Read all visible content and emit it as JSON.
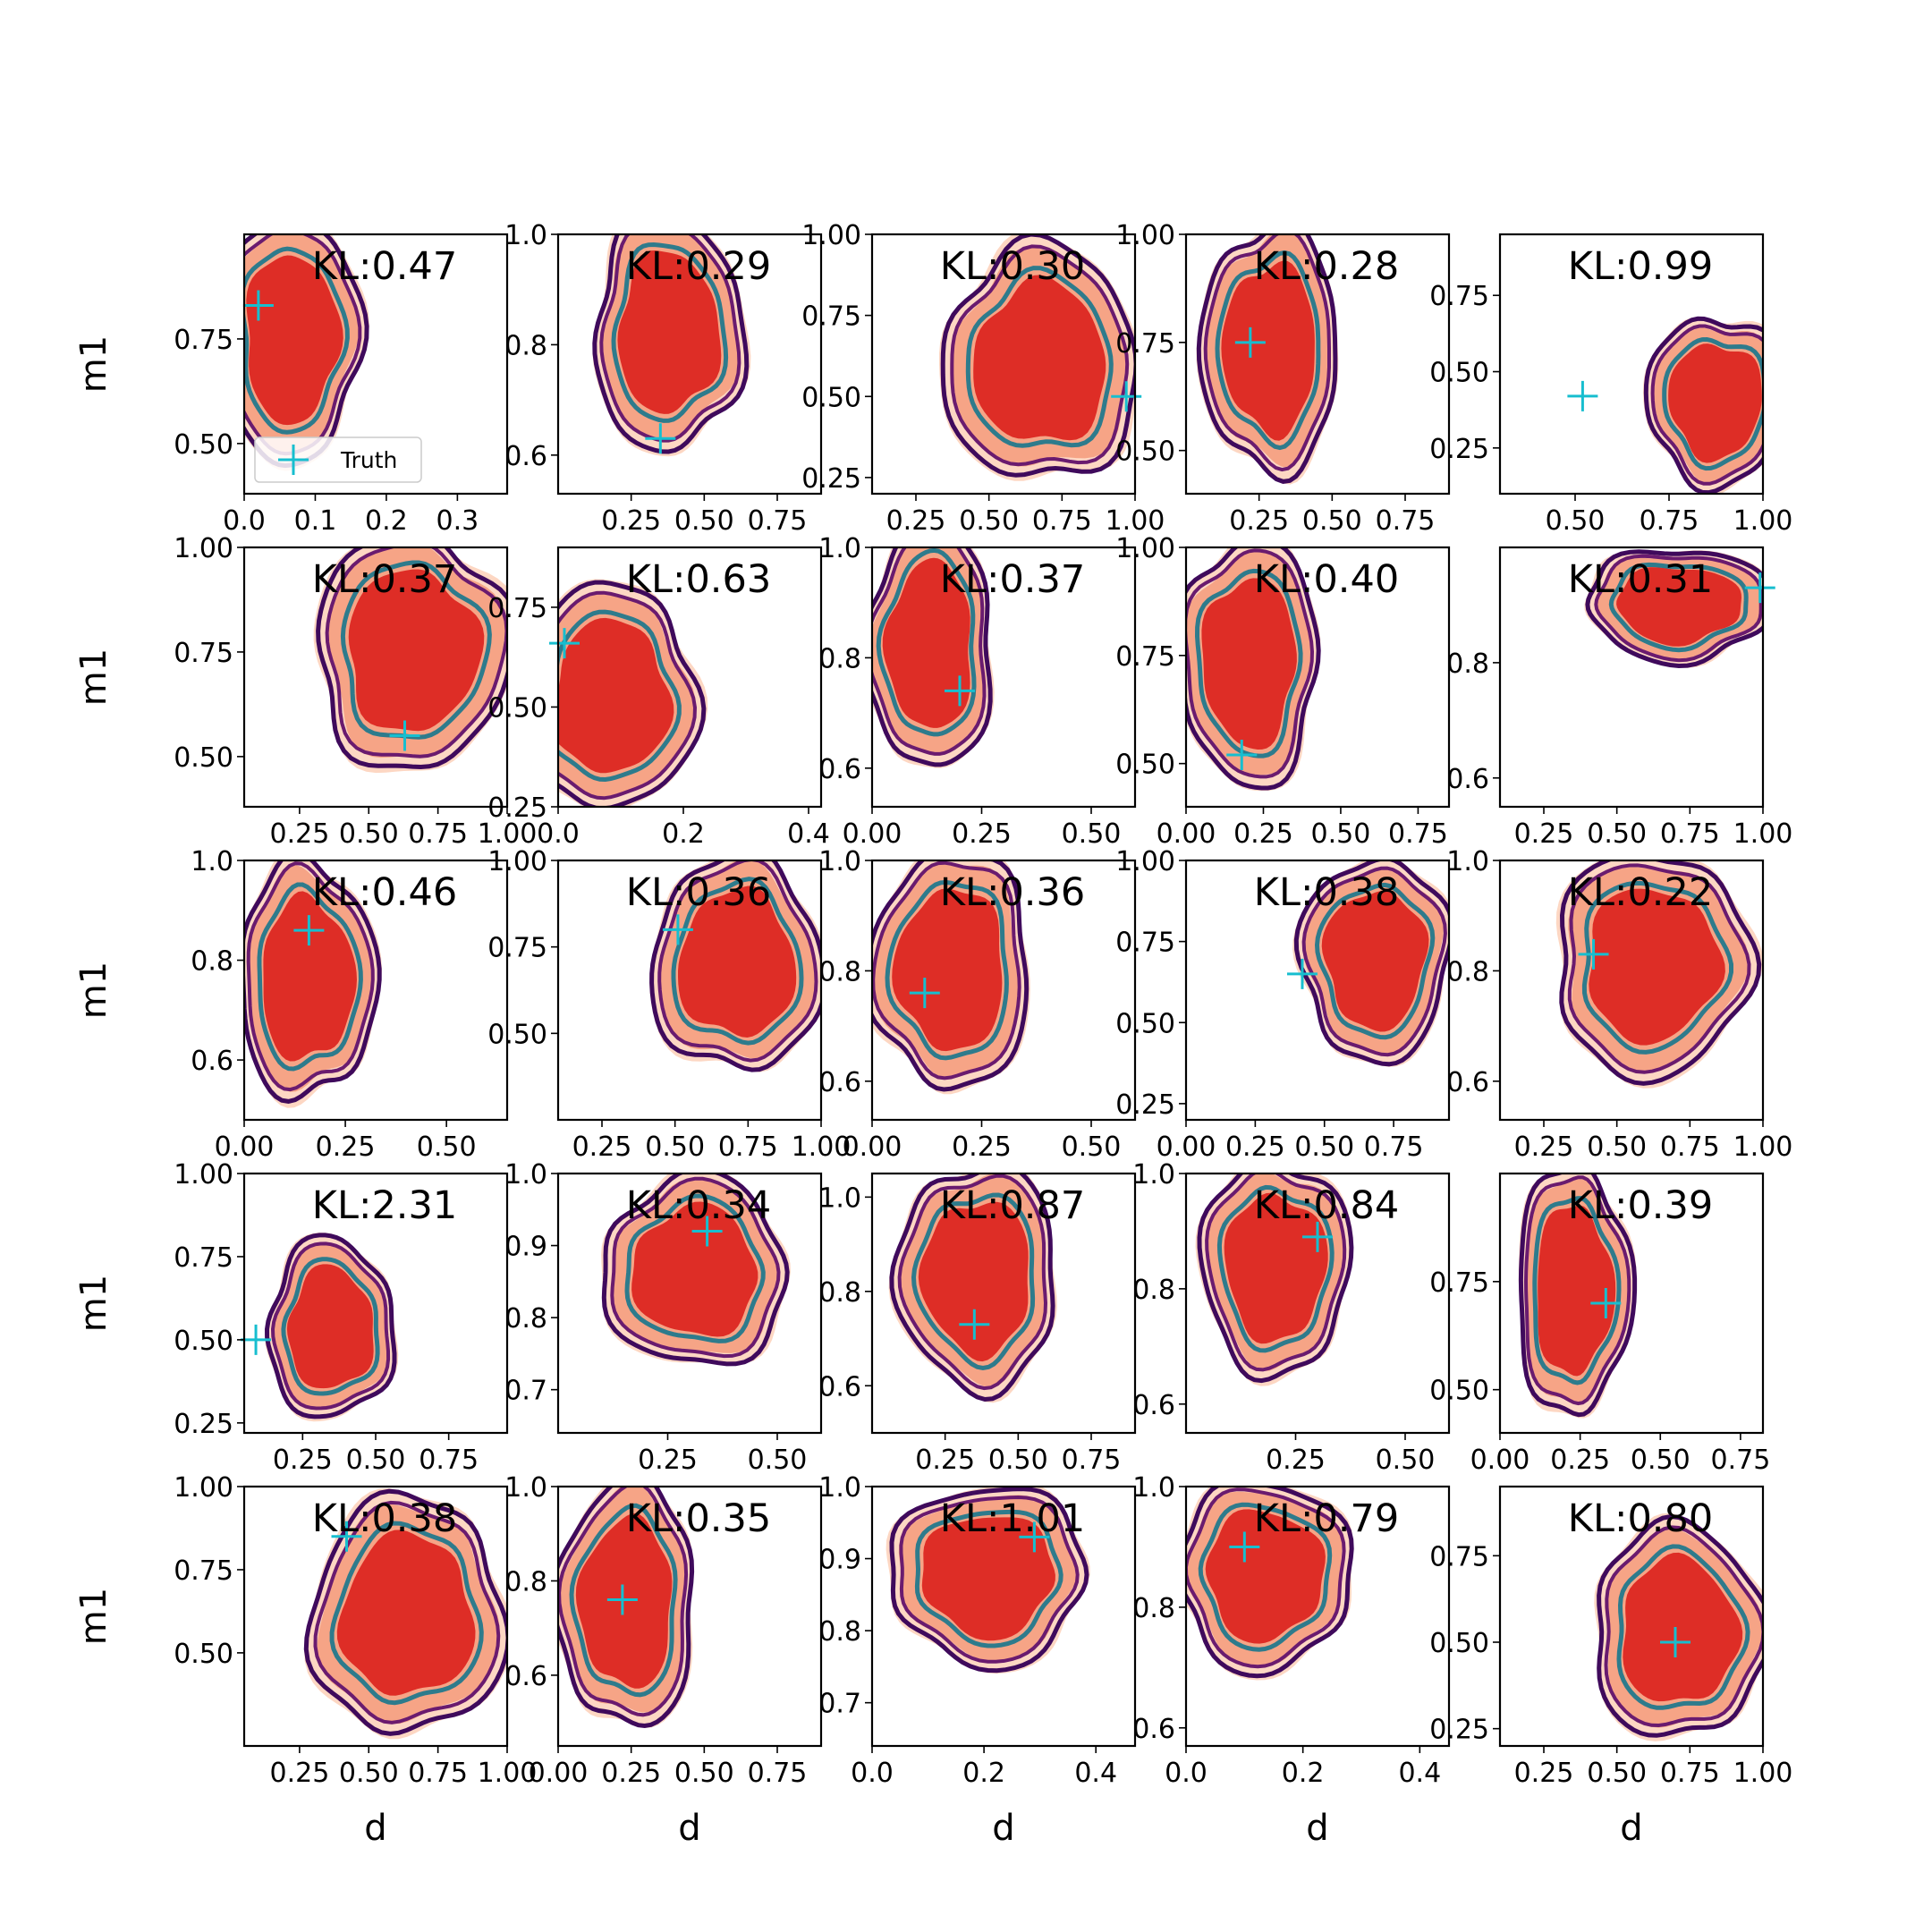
{
  "chart_data": {
    "type": "contour",
    "layout": {
      "rows": 5,
      "cols": 5
    },
    "xlabel": "d",
    "ylabel": "m1",
    "legend": {
      "label": "Truth",
      "placement": "lower-left of first panel"
    },
    "colors": {
      "fill_light": "#fdd7c3",
      "fill_mid": "#f6a486",
      "fill_dark": "#de2d26",
      "contour_outer": "#3f0a5c",
      "contour_mid": "#6a1b6f",
      "contour_inner": "#2e7b8c",
      "truth": "#17becf"
    },
    "panels": [
      {
        "kl": "KL:0.47",
        "xlim": [
          0.0,
          0.37
        ],
        "ylim": [
          0.38,
          1.0
        ],
        "xticks": [
          "0.0",
          "0.1",
          "0.2",
          "0.3"
        ],
        "xtick_vals": [
          0.0,
          0.1,
          0.2,
          0.3
        ],
        "yticks": [
          "0.50",
          "0.75"
        ],
        "ytick_vals": [
          0.5,
          0.75
        ],
        "truth": [
          0.02,
          0.83
        ],
        "blob": {
          "cx": 0.18,
          "cy": 0.6,
          "rx": 0.24,
          "ry": 0.44
        }
      },
      {
        "kl": "KL:0.29",
        "xlim": [
          0.0,
          0.9
        ],
        "ylim": [
          0.53,
          1.0
        ],
        "xticks": [
          "0.25",
          "0.50",
          "0.75"
        ],
        "xtick_vals": [
          0.25,
          0.5,
          0.75
        ],
        "yticks": [
          "0.6",
          "0.8",
          "1.0"
        ],
        "ytick_vals": [
          0.6,
          0.8,
          1.0
        ],
        "truth": [
          0.35,
          0.63
        ],
        "blob": {
          "cx": 0.42,
          "cy": 0.62,
          "rx": 0.26,
          "ry": 0.42
        }
      },
      {
        "kl": "KL:0.30",
        "xlim": [
          0.1,
          1.0
        ],
        "ylim": [
          0.2,
          1.0
        ],
        "xticks": [
          "0.25",
          "0.50",
          "0.75",
          "1.00"
        ],
        "xtick_vals": [
          0.25,
          0.5,
          0.75,
          1.0
        ],
        "yticks": [
          "0.25",
          "0.50",
          "0.75",
          "1.00"
        ],
        "ytick_vals": [
          0.25,
          0.5,
          0.75,
          1.0
        ],
        "truth": [
          0.97,
          0.5
        ],
        "blob": {
          "cx": 0.64,
          "cy": 0.5,
          "rx": 0.34,
          "ry": 0.42
        }
      },
      {
        "kl": "KL:0.28",
        "xlim": [
          0.0,
          0.9
        ],
        "ylim": [
          0.4,
          1.0
        ],
        "xticks": [
          "0.25",
          "0.50",
          "0.75"
        ],
        "xtick_vals": [
          0.25,
          0.5,
          0.75
        ],
        "yticks": [
          "0.50",
          "0.75",
          "1.00"
        ],
        "ytick_vals": [
          0.5,
          0.75,
          1.0
        ],
        "truth": [
          0.22,
          0.75
        ],
        "blob": {
          "cx": 0.32,
          "cy": 0.56,
          "rx": 0.24,
          "ry": 0.44
        }
      },
      {
        "kl": "KL:0.99",
        "xlim": [
          0.3,
          1.0
        ],
        "ylim": [
          0.1,
          0.95
        ],
        "xticks": [
          "0.50",
          "0.75",
          "1.00"
        ],
        "xtick_vals": [
          0.5,
          0.75,
          1.0
        ],
        "yticks": [
          "0.25",
          "0.50",
          "0.75"
        ],
        "ytick_vals": [
          0.25,
          0.5,
          0.75
        ],
        "truth": [
          0.52,
          0.42
        ],
        "blob": {
          "cx": 0.82,
          "cy": 0.36,
          "rx": 0.24,
          "ry": 0.3
        }
      },
      {
        "kl": "KL:0.37",
        "xlim": [
          0.05,
          1.0
        ],
        "ylim": [
          0.38,
          1.0
        ],
        "xticks": [
          "0.25",
          "0.50",
          "0.75",
          "1.00"
        ],
        "xtick_vals": [
          0.25,
          0.5,
          0.75,
          1.0
        ],
        "yticks": [
          "0.50",
          "0.75",
          "1.00"
        ],
        "ytick_vals": [
          0.5,
          0.75,
          1.0
        ],
        "truth": [
          0.63,
          0.55
        ],
        "blob": {
          "cx": 0.64,
          "cy": 0.6,
          "rx": 0.34,
          "ry": 0.42
        }
      },
      {
        "kl": "KL:0.63",
        "xlim": [
          0.0,
          0.42
        ],
        "ylim": [
          0.25,
          0.9
        ],
        "xticks": [
          "0.0",
          "0.2",
          "0.4"
        ],
        "xtick_vals": [
          0.0,
          0.2,
          0.4
        ],
        "yticks": [
          "0.25",
          "0.50",
          "0.75"
        ],
        "ytick_vals": [
          0.25,
          0.5,
          0.75
        ],
        "truth": [
          0.01,
          0.66
        ],
        "blob": {
          "cx": 0.2,
          "cy": 0.42,
          "rx": 0.3,
          "ry": 0.4
        }
      },
      {
        "kl": "KL:0.37",
        "xlim": [
          0.0,
          0.6
        ],
        "ylim": [
          0.53,
          1.0
        ],
        "xticks": [
          "0.00",
          "0.25",
          "0.50"
        ],
        "xtick_vals": [
          0.0,
          0.25,
          0.5
        ],
        "yticks": [
          "0.6",
          "0.8",
          "1.0"
        ],
        "ytick_vals": [
          0.6,
          0.8,
          1.0
        ],
        "truth": [
          0.2,
          0.74
        ],
        "blob": {
          "cx": 0.22,
          "cy": 0.62,
          "rx": 0.22,
          "ry": 0.44
        }
      },
      {
        "kl": "KL:0.40",
        "xlim": [
          0.0,
          0.85
        ],
        "ylim": [
          0.4,
          1.0
        ],
        "xticks": [
          "0.00",
          "0.25",
          "0.50",
          "0.75"
        ],
        "xtick_vals": [
          0.0,
          0.25,
          0.5,
          0.75
        ],
        "yticks": [
          "0.50",
          "0.75",
          "1.00"
        ],
        "ytick_vals": [
          0.5,
          0.75,
          1.0
        ],
        "truth": [
          0.18,
          0.52
        ],
        "blob": {
          "cx": 0.24,
          "cy": 0.56,
          "rx": 0.24,
          "ry": 0.44
        }
      },
      {
        "kl": "KL:0.31",
        "xlim": [
          0.1,
          1.0
        ],
        "ylim": [
          0.55,
          1.0
        ],
        "xticks": [
          "0.25",
          "0.50",
          "0.75",
          "1.00"
        ],
        "xtick_vals": [
          0.25,
          0.5,
          0.75,
          1.0
        ],
        "yticks": [
          "0.6",
          "0.8"
        ],
        "ytick_vals": [
          0.6,
          0.8
        ],
        "truth": [
          0.99,
          0.93
        ],
        "blob": {
          "cx": 0.68,
          "cy": 0.78,
          "rx": 0.32,
          "ry": 0.2
        }
      },
      {
        "kl": "KL:0.46",
        "xlim": [
          0.0,
          0.65
        ],
        "ylim": [
          0.48,
          1.0
        ],
        "xticks": [
          "0.00",
          "0.25",
          "0.50"
        ],
        "xtick_vals": [
          0.0,
          0.25,
          0.5
        ],
        "yticks": [
          "0.6",
          "0.8",
          "1.0"
        ],
        "ytick_vals": [
          0.6,
          0.8,
          1.0
        ],
        "truth": [
          0.16,
          0.86
        ],
        "blob": {
          "cx": 0.24,
          "cy": 0.54,
          "rx": 0.24,
          "ry": 0.42
        }
      },
      {
        "kl": "KL:0.36",
        "xlim": [
          0.1,
          1.0
        ],
        "ylim": [
          0.25,
          1.0
        ],
        "xticks": [
          "0.25",
          "0.50",
          "0.75",
          "1.00"
        ],
        "xtick_vals": [
          0.25,
          0.5,
          0.75,
          1.0
        ],
        "yticks": [
          "0.50",
          "0.75",
          "1.00"
        ],
        "ytick_vals": [
          0.5,
          0.75,
          1.0
        ],
        "truth": [
          0.51,
          0.8
        ],
        "blob": {
          "cx": 0.68,
          "cy": 0.6,
          "rx": 0.3,
          "ry": 0.38
        }
      },
      {
        "kl": "KL:0.36",
        "xlim": [
          0.0,
          0.6
        ],
        "ylim": [
          0.53,
          1.0
        ],
        "xticks": [
          "0.00",
          "0.25",
          "0.50"
        ],
        "xtick_vals": [
          0.0,
          0.25,
          0.5
        ],
        "yticks": [
          "0.6",
          "0.8",
          "1.0"
        ],
        "ytick_vals": [
          0.6,
          0.8,
          1.0
        ],
        "truth": [
          0.12,
          0.76
        ],
        "blob": {
          "cx": 0.3,
          "cy": 0.58,
          "rx": 0.28,
          "ry": 0.42
        }
      },
      {
        "kl": "KL:0.38",
        "xlim": [
          0.0,
          0.95
        ],
        "ylim": [
          0.2,
          1.0
        ],
        "xticks": [
          "0.00",
          "0.25",
          "0.50",
          "0.75"
        ],
        "xtick_vals": [
          0.0,
          0.25,
          0.5,
          0.75
        ],
        "yticks": [
          "0.25",
          "0.50",
          "0.75",
          "1.00"
        ],
        "ytick_vals": [
          0.25,
          0.5,
          0.75,
          1.0
        ],
        "truth": [
          0.42,
          0.65
        ],
        "blob": {
          "cx": 0.72,
          "cy": 0.62,
          "rx": 0.26,
          "ry": 0.36
        }
      },
      {
        "kl": "KL:0.22",
        "xlim": [
          0.1,
          1.0
        ],
        "ylim": [
          0.53,
          1.0
        ],
        "xticks": [
          "0.25",
          "0.50",
          "0.75",
          "1.00"
        ],
        "xtick_vals": [
          0.25,
          0.5,
          0.75,
          1.0
        ],
        "yticks": [
          "0.6",
          "0.8",
          "1.0"
        ],
        "ytick_vals": [
          0.6,
          0.8,
          1.0
        ],
        "truth": [
          0.42,
          0.83
        ],
        "blob": {
          "cx": 0.58,
          "cy": 0.6,
          "rx": 0.34,
          "ry": 0.4
        }
      },
      {
        "kl": "KL:2.31",
        "xlim": [
          0.05,
          0.95
        ],
        "ylim": [
          0.22,
          1.0
        ],
        "xticks": [
          "0.25",
          "0.50",
          "0.75"
        ],
        "xtick_vals": [
          0.25,
          0.5,
          0.75
        ],
        "yticks": [
          "0.25",
          "0.50",
          "0.75",
          "1.00"
        ],
        "ytick_vals": [
          0.25,
          0.5,
          0.75,
          1.0
        ],
        "truth": [
          0.09,
          0.5
        ],
        "blob": {
          "cx": 0.33,
          "cy": 0.4,
          "rx": 0.22,
          "ry": 0.32
        }
      },
      {
        "kl": "KL:0.34",
        "xlim": [
          0.0,
          0.6
        ],
        "ylim": [
          0.64,
          1.0
        ],
        "xticks": [
          "0.25",
          "0.50"
        ],
        "xtick_vals": [
          0.25,
          0.5
        ],
        "yticks": [
          "0.7",
          "0.8",
          "0.9",
          "1.0"
        ],
        "ytick_vals": [
          0.7,
          0.8,
          0.9,
          1.0
        ],
        "truth": [
          0.34,
          0.92
        ],
        "blob": {
          "cx": 0.52,
          "cy": 0.62,
          "rx": 0.32,
          "ry": 0.34
        }
      },
      {
        "kl": "KL:0.87",
        "xlim": [
          0.0,
          0.9
        ],
        "ylim": [
          0.5,
          1.05
        ],
        "xticks": [
          "0.25",
          "0.50",
          "0.75"
        ],
        "xtick_vals": [
          0.25,
          0.5,
          0.75
        ],
        "yticks": [
          "0.6",
          "0.8",
          "1.0"
        ],
        "ytick_vals": [
          0.6,
          0.8,
          1.0
        ],
        "truth": [
          0.35,
          0.73
        ],
        "blob": {
          "cx": 0.4,
          "cy": 0.6,
          "rx": 0.28,
          "ry": 0.4
        }
      },
      {
        "kl": "KL:0.84",
        "xlim": [
          0.0,
          0.6
        ],
        "ylim": [
          0.55,
          1.0
        ],
        "xticks": [
          "0.25",
          "0.50"
        ],
        "xtick_vals": [
          0.25,
          0.5
        ],
        "yticks": [
          "0.6",
          "0.8",
          "1.0"
        ],
        "ytick_vals": [
          0.6,
          0.8,
          1.0
        ],
        "truth": [
          0.3,
          0.89
        ],
        "blob": {
          "cx": 0.34,
          "cy": 0.64,
          "rx": 0.26,
          "ry": 0.38
        }
      },
      {
        "kl": "KL:0.39",
        "xlim": [
          0.0,
          0.82
        ],
        "ylim": [
          0.4,
          1.0
        ],
        "xticks": [
          "0.00",
          "0.25",
          "0.50",
          "0.75"
        ],
        "xtick_vals": [
          0.0,
          0.25,
          0.5,
          0.75
        ],
        "yticks": [
          "0.50",
          "0.75"
        ],
        "ytick_vals": [
          0.5,
          0.75
        ],
        "truth": [
          0.33,
          0.7
        ],
        "blob": {
          "cx": 0.28,
          "cy": 0.55,
          "rx": 0.2,
          "ry": 0.44
        }
      },
      {
        "kl": "KL:0.38",
        "xlim": [
          0.05,
          1.0
        ],
        "ylim": [
          0.22,
          1.0
        ],
        "xticks": [
          "0.25",
          "0.50",
          "0.75",
          "1.00"
        ],
        "xtick_vals": [
          0.25,
          0.5,
          0.75,
          1.0
        ],
        "yticks": [
          "0.50",
          "0.75",
          "1.00"
        ],
        "ytick_vals": [
          0.5,
          0.75,
          1.0
        ],
        "truth": [
          0.42,
          0.85
        ],
        "blob": {
          "cx": 0.62,
          "cy": 0.5,
          "rx": 0.34,
          "ry": 0.42
        }
      },
      {
        "kl": "KL:0.35",
        "xlim": [
          0.0,
          0.9
        ],
        "ylim": [
          0.45,
          1.0
        ],
        "xticks": [
          "0.00",
          "0.25",
          "0.50",
          "0.75"
        ],
        "xtick_vals": [
          0.0,
          0.25,
          0.5,
          0.75
        ],
        "yticks": [
          "0.6",
          "0.8",
          "1.0"
        ],
        "ytick_vals": [
          0.6,
          0.8,
          1.0
        ],
        "truth": [
          0.22,
          0.76
        ],
        "blob": {
          "cx": 0.26,
          "cy": 0.55,
          "rx": 0.24,
          "ry": 0.44
        }
      },
      {
        "kl": "KL:1.01",
        "xlim": [
          0.0,
          0.47
        ],
        "ylim": [
          0.64,
          1.0
        ],
        "xticks": [
          "0.0",
          "0.2",
          "0.4"
        ],
        "xtick_vals": [
          0.0,
          0.2,
          0.4
        ],
        "yticks": [
          "0.7",
          "0.8",
          "0.9",
          "1.0"
        ],
        "ytick_vals": [
          0.7,
          0.8,
          0.9,
          1.0
        ],
        "truth": [
          0.29,
          0.93
        ],
        "blob": {
          "cx": 0.44,
          "cy": 0.66,
          "rx": 0.34,
          "ry": 0.32
        }
      },
      {
        "kl": "KL:0.79",
        "xlim": [
          0.0,
          0.45
        ],
        "ylim": [
          0.57,
          1.0
        ],
        "xticks": [
          "0.0",
          "0.2",
          "0.4"
        ],
        "xtick_vals": [
          0.0,
          0.2,
          0.4
        ],
        "yticks": [
          "0.6",
          "0.8",
          "1.0"
        ],
        "ytick_vals": [
          0.6,
          0.8,
          1.0
        ],
        "truth": [
          0.1,
          0.9
        ],
        "blob": {
          "cx": 0.3,
          "cy": 0.66,
          "rx": 0.3,
          "ry": 0.34
        }
      },
      {
        "kl": "KL:0.80",
        "xlim": [
          0.1,
          1.0
        ],
        "ylim": [
          0.2,
          0.95
        ],
        "xticks": [
          "0.25",
          "0.50",
          "0.75",
          "1.00"
        ],
        "xtick_vals": [
          0.25,
          0.5,
          0.75,
          1.0
        ],
        "yticks": [
          "0.25",
          "0.50",
          "0.75"
        ],
        "ytick_vals": [
          0.25,
          0.5,
          0.75
        ],
        "truth": [
          0.7,
          0.5
        ],
        "blob": {
          "cx": 0.68,
          "cy": 0.44,
          "rx": 0.3,
          "ry": 0.38
        }
      }
    ]
  }
}
